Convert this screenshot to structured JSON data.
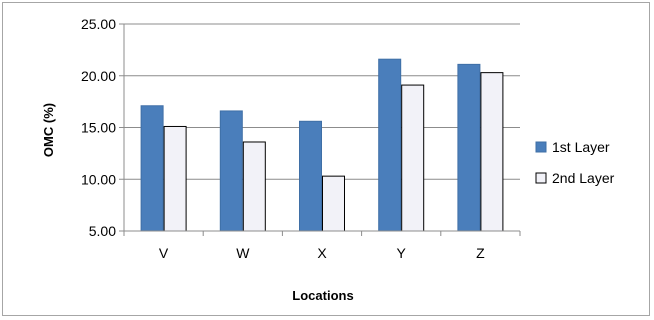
{
  "chart_data": {
    "type": "bar",
    "title": "",
    "xlabel": "Locations",
    "ylabel": "OMC (%)",
    "categories": [
      "V",
      "W",
      "X",
      "Y",
      "Z"
    ],
    "ylim": [
      5,
      25
    ],
    "yticks": [
      "5.00",
      "10.00",
      "15.00",
      "20.00",
      "25.00"
    ],
    "ytick_values": [
      5,
      10,
      15,
      20,
      25
    ],
    "grid": true,
    "legend_position": "right",
    "series": [
      {
        "name": "1st Layer",
        "values": [
          17.1,
          16.6,
          15.6,
          21.6,
          21.1
        ],
        "color": "#4a7ebb",
        "stroke": "#3f6fa6"
      },
      {
        "name": "2nd Layer",
        "values": [
          15.1,
          13.6,
          10.3,
          19.1,
          20.3
        ],
        "color": "#f2f2f8",
        "stroke": "#000000"
      }
    ]
  }
}
